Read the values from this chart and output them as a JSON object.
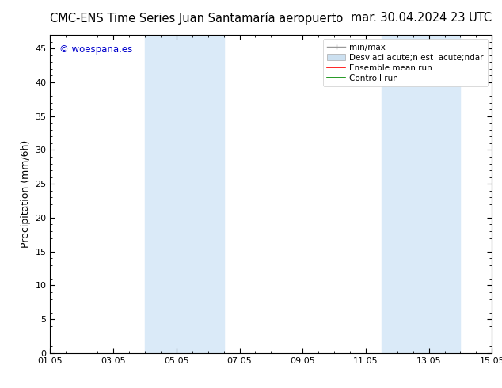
{
  "title_left": "CMC-ENS Time Series Juan Santamaría aeropuerto",
  "title_right": "mar. 30.04.2024 23 UTC",
  "ylabel": "Precipitation (mm/6h)",
  "xtick_labels": [
    "01.05",
    "03.05",
    "05.05",
    "07.05",
    "09.05",
    "11.05",
    "13.05",
    "15.05"
  ],
  "xtick_positions": [
    0,
    2,
    4,
    6,
    8,
    10,
    12,
    14
  ],
  "ylim": [
    0,
    47
  ],
  "ytick_labels": [
    "0",
    "5",
    "10",
    "15",
    "20",
    "25",
    "30",
    "35",
    "40",
    "45"
  ],
  "ytick_positions": [
    0,
    5,
    10,
    15,
    20,
    25,
    30,
    35,
    40,
    45
  ],
  "background_color": "#ffffff",
  "plot_background": "#ffffff",
  "shade_regions": [
    {
      "x_start": 3.0,
      "x_end": 5.5,
      "color": "#daeaf8"
    },
    {
      "x_start": 10.5,
      "x_end": 13.0,
      "color": "#daeaf8"
    }
  ],
  "watermark_text": "© woespana.es",
  "watermark_color": "#0000cc",
  "legend_label_minmax": "min/max",
  "legend_label_std": "Desviaci acute;n est  acute;ndar",
  "legend_label_ens": "Ensemble mean run",
  "legend_label_ctrl": "Controll run",
  "legend_color_minmax": "#999999",
  "legend_color_std": "#cce0f0",
  "legend_color_ens": "#ff0000",
  "legend_color_ctrl": "#008800",
  "title_fontsize": 10.5,
  "axis_fontsize": 9,
  "tick_fontsize": 8,
  "legend_fontsize": 7.5,
  "watermark_fontsize": 8.5
}
